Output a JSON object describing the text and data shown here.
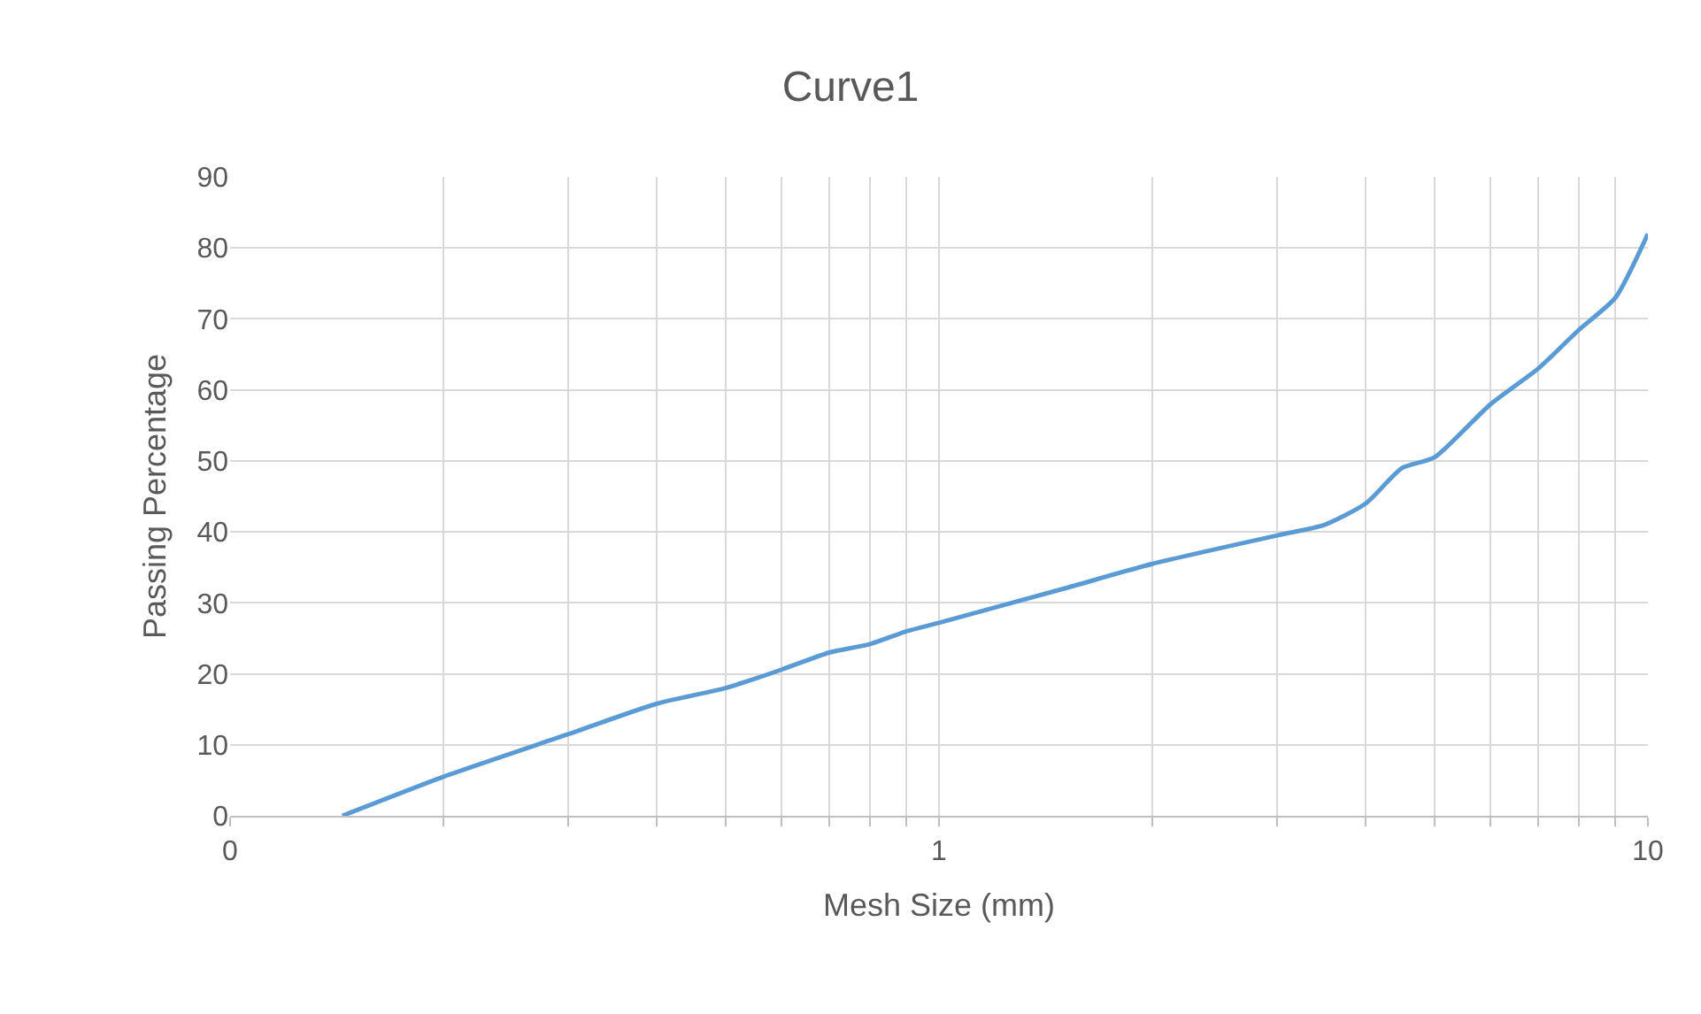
{
  "chart_data": {
    "type": "line",
    "title": "Curve1",
    "xlabel": "Mesh Size (mm)",
    "ylabel": "Passing Percentage",
    "x": [
      0.144,
      0.2,
      0.3,
      0.4,
      0.5,
      0.6,
      0.7,
      0.8,
      0.9,
      1,
      1.5,
      2,
      3,
      3.5,
      4,
      4.5,
      5,
      6,
      7,
      8,
      9,
      10
    ],
    "series": [
      {
        "color": "#5b9bd5",
        "values": [
          0,
          5.5,
          11.5,
          15.8,
          18,
          20.6,
          23,
          24.2,
          26,
          27.2,
          32,
          35.5,
          39.5,
          41,
          44,
          49,
          50.5,
          58,
          63,
          68.5,
          73,
          82
        ]
      }
    ],
    "log": "x",
    "xlim": [
      0.1,
      10
    ],
    "xticks": [
      {
        "value": 0.1,
        "label": "0"
      },
      {
        "value": 0.2,
        "label": null
      },
      {
        "value": 0.3,
        "label": null
      },
      {
        "value": 0.4,
        "label": null
      },
      {
        "value": 0.5,
        "label": null
      },
      {
        "value": 0.6,
        "label": null
      },
      {
        "value": 0.7,
        "label": null
      },
      {
        "value": 0.8,
        "label": null
      },
      {
        "value": 0.9,
        "label": null
      },
      1,
      {
        "value": 2,
        "label": null
      },
      {
        "value": 3,
        "label": null
      },
      {
        "value": 4,
        "label": null
      },
      {
        "value": 5,
        "label": null
      },
      {
        "value": 6,
        "label": null
      },
      {
        "value": 7,
        "label": null
      },
      {
        "value": 8,
        "label": null
      },
      {
        "value": 9,
        "label": null
      },
      10
    ],
    "ylim": [
      0,
      90
    ],
    "yticks": [
      0,
      10,
      20,
      30,
      40,
      50,
      60,
      70,
      80,
      90
    ],
    "grid": true,
    "marker": "none",
    "line_style": "solid"
  }
}
